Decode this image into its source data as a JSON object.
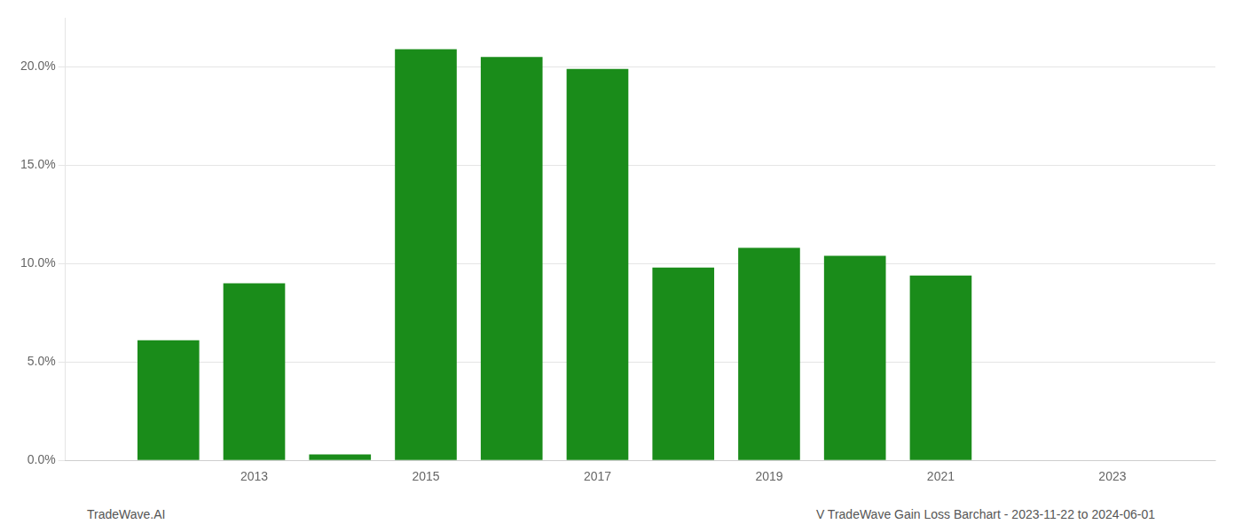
{
  "chart_data": {
    "type": "bar",
    "x": [
      2012,
      2013,
      2014,
      2015,
      2016,
      2017,
      2018,
      2019,
      2020,
      2021,
      2022,
      2023
    ],
    "values": [
      0.061,
      0.09,
      0.003,
      0.209,
      0.205,
      0.199,
      0.098,
      0.108,
      0.104,
      0.094,
      0.0,
      0.0
    ],
    "color": "#1a8c1a",
    "xlim": [
      2010.8,
      2024.2
    ],
    "xticks": [
      2013,
      2015,
      2017,
      2019,
      2021,
      2023
    ],
    "ylim": [
      0,
      0.225
    ],
    "yticks": [
      {
        "value": 0.0,
        "label": "0.0%"
      },
      {
        "value": 0.05,
        "label": "5.0%"
      },
      {
        "value": 0.1,
        "label": "10.0%"
      },
      {
        "value": 0.15,
        "label": "15.0%"
      },
      {
        "value": 0.2,
        "label": "20.0%"
      }
    ],
    "grid": "y",
    "annotations": [
      "TradeWave.AI",
      "V TradeWave Gain Loss Barchart - 2023-11-22 to 2024-06-01"
    ]
  }
}
